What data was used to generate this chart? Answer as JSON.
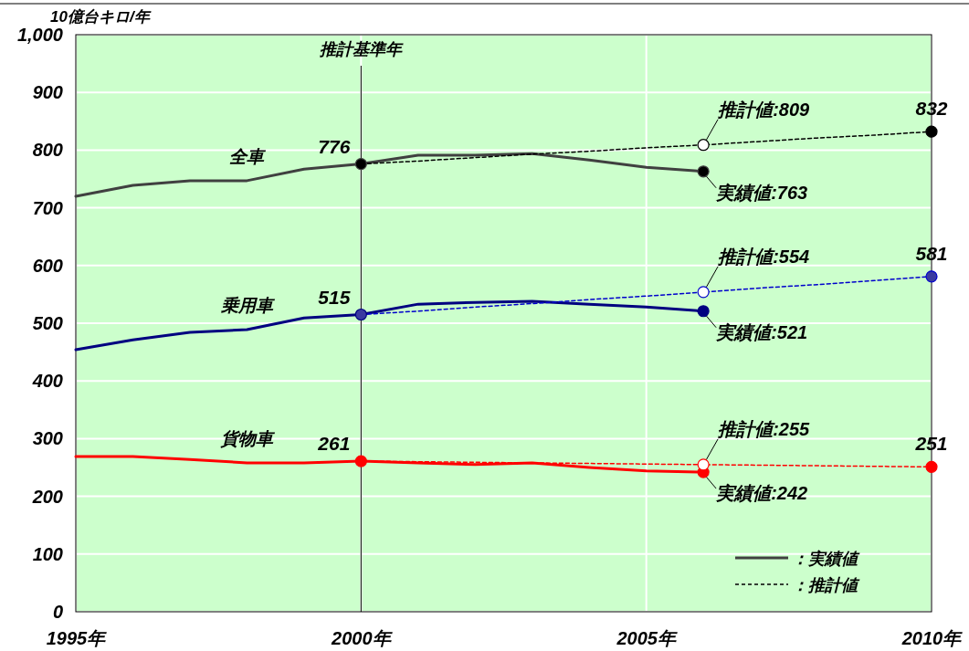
{
  "chart_data": {
    "type": "line",
    "ylabel": "10億台キロ/年",
    "xlim": [
      1995,
      2010
    ],
    "ylim": [
      0,
      1000
    ],
    "xticks": [
      {
        "value": 1995,
        "label": "1995年"
      },
      {
        "value": 2000,
        "label": "2000年"
      },
      {
        "value": 2005,
        "label": "2005年"
      },
      {
        "value": 2010,
        "label": "2010年"
      }
    ],
    "yticks": [
      0,
      100,
      200,
      300,
      400,
      500,
      600,
      700,
      800,
      900,
      {
        "value": 1000,
        "label": "1,000"
      }
    ],
    "grid": true,
    "legend": "bottom right",
    "ref_lines": [
      {
        "axis": "x",
        "value": 2000,
        "label": "推計基準年",
        "color": "#000000"
      }
    ],
    "annotations": [
      "全車",
      "乗用車",
      "貨物車"
    ],
    "series": [
      {
        "name": "：実績値",
        "color": "#404040",
        "line_style": "solid",
        "x": [
          1995,
          1996,
          1997,
          1998,
          1999,
          2000,
          2001,
          2002,
          2003,
          2004,
          2005,
          2006
        ],
        "values": [
          720,
          739,
          747,
          747,
          767,
          776,
          791,
          791,
          794,
          783,
          770,
          763
        ],
        "colors": [
          null,
          null,
          null,
          null,
          null,
          "#000000",
          null,
          null,
          null,
          null,
          null,
          "#000000"
        ],
        "value_labels": [
          null,
          null,
          null,
          null,
          null,
          "776",
          null,
          null,
          null,
          null,
          null,
          "実績値:763"
        ]
      },
      {
        "name": "：推計値",
        "color": "#000000",
        "line_style": "dashed",
        "x": [
          2000,
          2001,
          2002,
          2003,
          2004,
          2005,
          2006,
          2007,
          2008,
          2009,
          2010
        ],
        "values": [
          776,
          781,
          787,
          793,
          798,
          804,
          809,
          815,
          821,
          826,
          832
        ],
        "colors": [
          null,
          null,
          null,
          null,
          null,
          null,
          "#ffffff",
          null,
          null,
          null,
          "#000000"
        ],
        "value_labels": [
          null,
          null,
          null,
          null,
          null,
          null,
          "推計値:809",
          null,
          null,
          null,
          "832"
        ]
      },
      {
        "color": "#000080",
        "line_style": "solid",
        "x": [
          1995,
          1996,
          1997,
          1998,
          1999,
          2000,
          2001,
          2002,
          2003,
          2004,
          2005,
          2006
        ],
        "values": [
          454,
          471,
          484,
          489,
          509,
          515,
          533,
          536,
          538,
          533,
          528,
          521
        ],
        "colors": [
          null,
          null,
          null,
          null,
          null,
          "#3a3aa0",
          null,
          null,
          null,
          null,
          null,
          "#000080"
        ],
        "value_labels": [
          null,
          null,
          null,
          null,
          null,
          "515",
          null,
          null,
          null,
          null,
          null,
          "実績値:521"
        ]
      },
      {
        "color": "#0000cc",
        "line_style": "dashed",
        "x": [
          2000,
          2001,
          2002,
          2003,
          2004,
          2005,
          2006,
          2007,
          2008,
          2009,
          2010
        ],
        "values": [
          515,
          521,
          528,
          534,
          541,
          547,
          554,
          561,
          567,
          574,
          581
        ],
        "colors": [
          null,
          null,
          null,
          null,
          null,
          null,
          "#ffffff",
          null,
          null,
          null,
          "#3a3aa0"
        ],
        "value_labels": [
          null,
          null,
          null,
          null,
          null,
          null,
          "推計値:554",
          null,
          null,
          null,
          "581"
        ]
      },
      {
        "color": "#ff0000",
        "line_style": "solid",
        "x": [
          1995,
          1996,
          1997,
          1998,
          1999,
          2000,
          2001,
          2002,
          2003,
          2004,
          2005,
          2006
        ],
        "values": [
          269,
          269,
          264,
          258,
          258,
          261,
          258,
          255,
          258,
          250,
          244,
          242
        ],
        "colors": [
          null,
          null,
          null,
          null,
          null,
          "#ff0000",
          null,
          null,
          null,
          null,
          null,
          "#ff0000"
        ],
        "value_labels": [
          null,
          null,
          null,
          null,
          null,
          "261",
          null,
          null,
          null,
          null,
          null,
          "実績値:242"
        ]
      },
      {
        "color": "#ff0000",
        "line_style": "dashed",
        "x": [
          2000,
          2001,
          2002,
          2003,
          2004,
          2005,
          2006,
          2007,
          2008,
          2009,
          2010
        ],
        "values": [
          261,
          260,
          259,
          258,
          257,
          256,
          255,
          254,
          253,
          252,
          251
        ],
        "colors": [
          null,
          null,
          null,
          null,
          null,
          null,
          "#ffffff",
          null,
          null,
          null,
          "#ff0000"
        ],
        "value_labels": [
          null,
          null,
          null,
          null,
          null,
          null,
          "推計値:255",
          null,
          null,
          null,
          "251"
        ]
      }
    ]
  }
}
